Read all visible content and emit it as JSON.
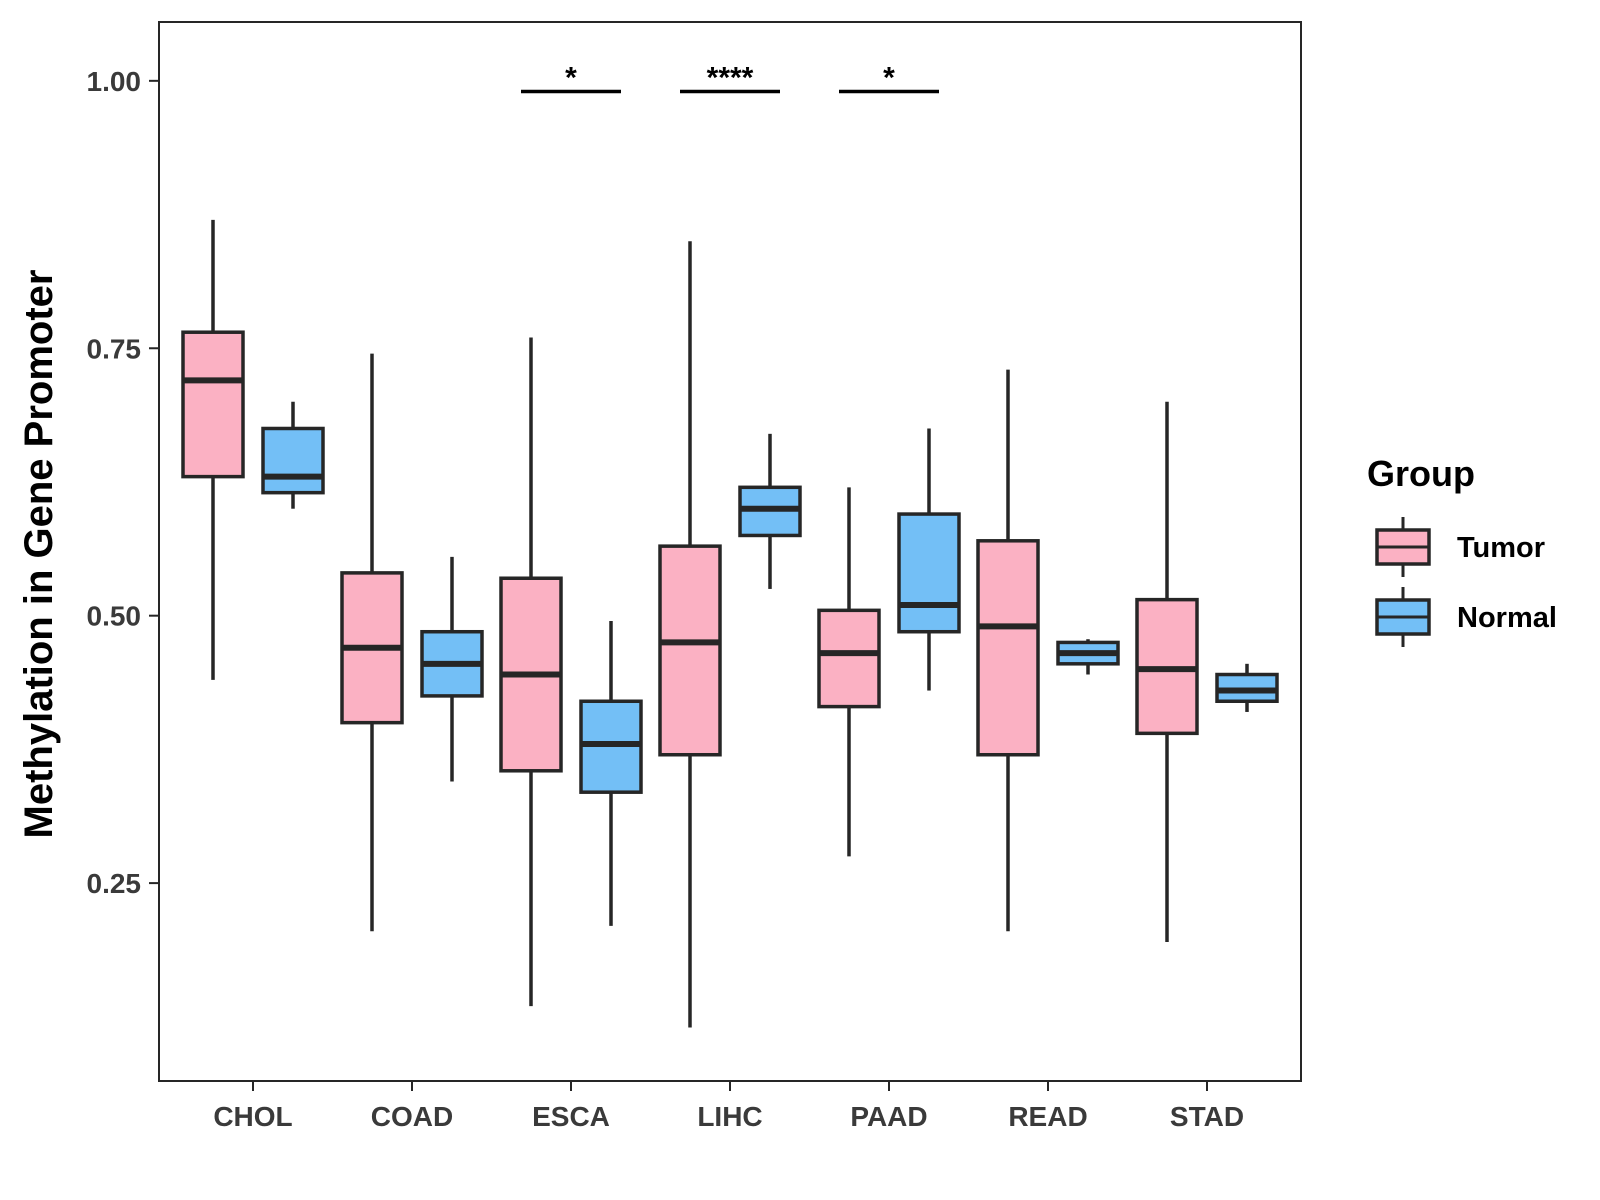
{
  "chart_data": {
    "type": "boxplot",
    "title": "",
    "xlabel": "",
    "ylabel": "Methylation in Gene Promoter",
    "ylim": [
      0.065,
      1.055
    ],
    "yticks": [
      0.25,
      0.5,
      0.75,
      1.0
    ],
    "ytick_labels": [
      "0.25",
      "0.50",
      "0.75",
      "1.00"
    ],
    "categories": [
      "CHOL",
      "COAD",
      "ESCA",
      "LIHC",
      "PAAD",
      "READ",
      "STAD"
    ],
    "grid": false,
    "legend": {
      "title": "Group",
      "position": "right"
    },
    "series": [
      {
        "name": "Tumor",
        "color": "#FBB1C3",
        "boxes": [
          {
            "min": 0.44,
            "q1": 0.63,
            "median": 0.72,
            "q3": 0.765,
            "max": 0.87
          },
          {
            "min": 0.205,
            "q1": 0.4,
            "median": 0.47,
            "q3": 0.54,
            "max": 0.745
          },
          {
            "min": 0.135,
            "q1": 0.355,
            "median": 0.445,
            "q3": 0.535,
            "max": 0.76
          },
          {
            "min": 0.115,
            "q1": 0.37,
            "median": 0.475,
            "q3": 0.565,
            "max": 0.85
          },
          {
            "min": 0.275,
            "q1": 0.415,
            "median": 0.465,
            "q3": 0.505,
            "max": 0.62
          },
          {
            "min": 0.205,
            "q1": 0.37,
            "median": 0.49,
            "q3": 0.57,
            "max": 0.73
          },
          {
            "min": 0.195,
            "q1": 0.39,
            "median": 0.45,
            "q3": 0.515,
            "max": 0.7
          }
        ]
      },
      {
        "name": "Normal",
        "color": "#73BFF6",
        "boxes": [
          {
            "min": 0.6,
            "q1": 0.615,
            "median": 0.63,
            "q3": 0.675,
            "max": 0.7
          },
          {
            "min": 0.345,
            "q1": 0.425,
            "median": 0.455,
            "q3": 0.485,
            "max": 0.555
          },
          {
            "min": 0.21,
            "q1": 0.335,
            "median": 0.38,
            "q3": 0.42,
            "max": 0.495
          },
          {
            "min": 0.525,
            "q1": 0.575,
            "median": 0.6,
            "q3": 0.62,
            "max": 0.67
          },
          {
            "min": 0.43,
            "q1": 0.485,
            "median": 0.51,
            "q3": 0.595,
            "max": 0.675
          },
          {
            "min": 0.445,
            "q1": 0.455,
            "median": 0.465,
            "q3": 0.475,
            "max": 0.478
          },
          {
            "min": 0.41,
            "q1": 0.42,
            "median": 0.43,
            "q3": 0.445,
            "max": 0.455
          }
        ]
      }
    ],
    "annotations": [
      {
        "category": "ESCA",
        "label": "*",
        "y": 0.99
      },
      {
        "category": "LIHC",
        "label": "****",
        "y": 0.99
      },
      {
        "category": "PAAD",
        "label": "*",
        "y": 0.99
      }
    ]
  }
}
